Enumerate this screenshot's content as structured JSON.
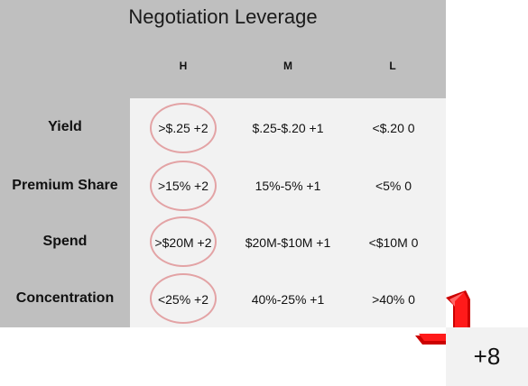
{
  "table": {
    "title": "Negotiation Leverage",
    "columns": [
      "H",
      "M",
      "L"
    ],
    "rows": [
      {
        "label": "Yield",
        "h": ">$.25 +2",
        "m": "$.25-$.20 +1",
        "l": "<$.20  0"
      },
      {
        "label": "Premium Share",
        "h": ">15% +2",
        "m": "15%-5% +1",
        "l": "<5%  0"
      },
      {
        "label": "Spend",
        "h": ">$20M +2",
        "m": "$20M-$10M +1",
        "l": "<$10M  0"
      },
      {
        "label": "Concentration",
        "h": "<25%  +2",
        "m": "40%-25% +1",
        "l": ">40%  0"
      }
    ]
  },
  "result": {
    "total": "+8"
  },
  "colors": {
    "grey_panel": "#bfbfbf",
    "light_panel": "#f2f2f2",
    "circle": "#e3a3a5",
    "arrow": "#ff0000"
  },
  "icons": {
    "arrow": "red-chevron-arrow-icon"
  }
}
